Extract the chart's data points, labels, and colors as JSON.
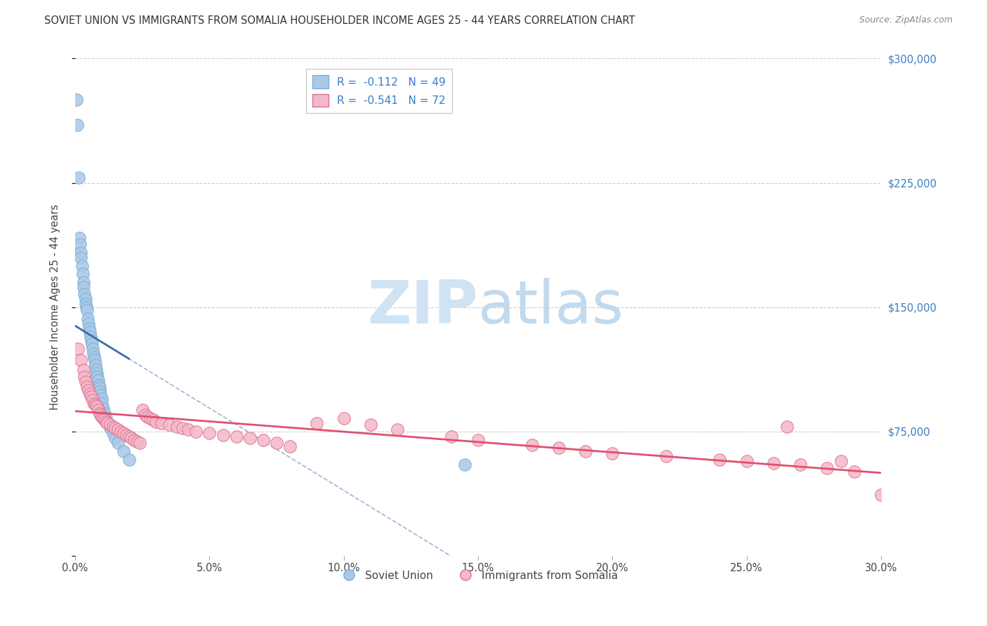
{
  "title": "SOVIET UNION VS IMMIGRANTS FROM SOMALIA HOUSEHOLDER INCOME AGES 25 - 44 YEARS CORRELATION CHART",
  "source": "Source: ZipAtlas.com",
  "ylabel": "Householder Income Ages 25 - 44 years",
  "soviet_R": -0.112,
  "soviet_N": 49,
  "somalia_R": -0.541,
  "somalia_N": 72,
  "soviet_color": "#aac8e8",
  "soviet_edge_color": "#7bafd4",
  "soviet_line_color": "#3a6fa8",
  "somalia_color": "#f4b8c8",
  "somalia_edge_color": "#e07090",
  "somalia_line_color": "#e05070",
  "background_color": "#ffffff",
  "grid_color": "#cccccc",
  "watermark_color": "#cfe3f3",
  "legend_label_soviet": "Soviet Union",
  "legend_label_somalia": "Immigrants from Somalia",
  "xlim": [
    0,
    30
  ],
  "ylim": [
    0,
    300000
  ],
  "soviet_scatter_x": [
    0.05,
    0.08,
    0.12,
    0.15,
    0.18,
    0.2,
    0.22,
    0.25,
    0.28,
    0.3,
    0.32,
    0.35,
    0.38,
    0.4,
    0.42,
    0.45,
    0.48,
    0.5,
    0.52,
    0.55,
    0.58,
    0.6,
    0.62,
    0.65,
    0.68,
    0.7,
    0.72,
    0.75,
    0.78,
    0.8,
    0.82,
    0.85,
    0.88,
    0.9,
    0.92,
    0.95,
    0.98,
    1.0,
    1.05,
    1.1,
    1.15,
    1.2,
    1.3,
    1.4,
    1.5,
    1.6,
    1.8,
    2.0,
    14.5
  ],
  "soviet_scatter_y": [
    275000,
    260000,
    228000,
    192000,
    188000,
    183000,
    180000,
    175000,
    170000,
    165000,
    162000,
    158000,
    155000,
    152000,
    150000,
    148000,
    143000,
    140000,
    137000,
    135000,
    132000,
    130000,
    128000,
    125000,
    122000,
    120000,
    118000,
    115000,
    112000,
    110000,
    108000,
    106000,
    103000,
    101000,
    99000,
    97000,
    95000,
    92000,
    89000,
    86000,
    83000,
    80000,
    77000,
    74000,
    71000,
    68000,
    63000,
    58000,
    55000
  ],
  "somalia_scatter_x": [
    0.1,
    0.2,
    0.3,
    0.35,
    0.4,
    0.45,
    0.5,
    0.55,
    0.6,
    0.65,
    0.7,
    0.75,
    0.8,
    0.85,
    0.9,
    0.95,
    1.0,
    1.05,
    1.1,
    1.15,
    1.2,
    1.3,
    1.4,
    1.5,
    1.6,
    1.7,
    1.8,
    1.9,
    2.0,
    2.1,
    2.2,
    2.3,
    2.4,
    2.5,
    2.6,
    2.7,
    2.8,
    2.9,
    3.0,
    3.2,
    3.5,
    3.8,
    4.0,
    4.2,
    4.5,
    5.0,
    5.5,
    6.0,
    6.5,
    7.0,
    7.5,
    8.0,
    9.0,
    10.0,
    11.0,
    12.0,
    14.0,
    15.0,
    17.0,
    18.0,
    19.0,
    20.0,
    22.0,
    24.0,
    25.0,
    26.0,
    27.0,
    28.0,
    29.0,
    26.5,
    28.5,
    30.0
  ],
  "somalia_scatter_y": [
    125000,
    118000,
    112000,
    108000,
    105000,
    102000,
    100000,
    98000,
    96000,
    94000,
    92000,
    91000,
    90000,
    88000,
    86000,
    85000,
    84000,
    83000,
    82000,
    81000,
    80000,
    79000,
    78000,
    77000,
    76000,
    75000,
    74000,
    73000,
    72000,
    71000,
    70000,
    69000,
    68000,
    88000,
    85000,
    84000,
    83000,
    82000,
    81000,
    80000,
    79000,
    78000,
    77000,
    76000,
    75000,
    74000,
    73000,
    72000,
    71000,
    70000,
    68000,
    66000,
    80000,
    83000,
    79000,
    76000,
    72000,
    70000,
    67000,
    65000,
    63000,
    62000,
    60000,
    58000,
    57000,
    56000,
    55000,
    53000,
    51000,
    78000,
    57000,
    37000
  ]
}
